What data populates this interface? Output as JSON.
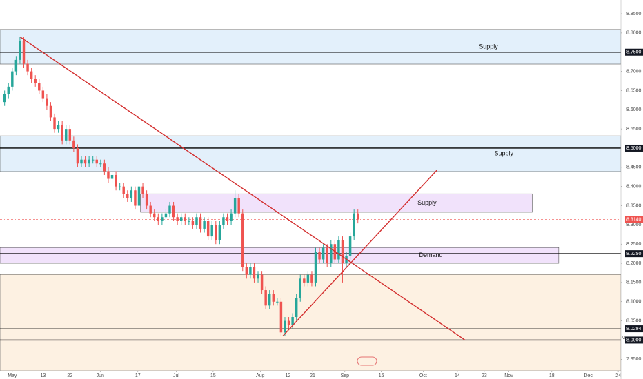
{
  "chart_data": {
    "type": "candlestick",
    "x": [
      -2,
      -1,
      0,
      1,
      2,
      3,
      4,
      5,
      6,
      7,
      8,
      9,
      10,
      11,
      12,
      13,
      14,
      15,
      16,
      17,
      18,
      19,
      20,
      21,
      22,
      23,
      24,
      25,
      26,
      27,
      28,
      29,
      30,
      31,
      32,
      33,
      34,
      35,
      36,
      37,
      38,
      39,
      40,
      41,
      42,
      43,
      44,
      45,
      46,
      47,
      48,
      49,
      50,
      51,
      52,
      53,
      54,
      55,
      56,
      57,
      58,
      59,
      60,
      61,
      62,
      63,
      64,
      65,
      66,
      67,
      68,
      69,
      70,
      71,
      72,
      73,
      74,
      75,
      76,
      77,
      78,
      79,
      80,
      81,
      82,
      83,
      84,
      85,
      86,
      87,
      88,
      89,
      90
    ],
    "open": [
      8.62,
      8.64,
      8.66,
      8.7,
      8.73,
      8.78,
      8.72,
      8.7,
      8.68,
      8.67,
      8.65,
      8.63,
      8.61,
      8.58,
      8.55,
      8.56,
      8.52,
      8.55,
      8.52,
      8.5,
      8.46,
      8.47,
      8.46,
      8.47,
      8.47,
      8.46,
      8.46,
      8.44,
      8.42,
      8.43,
      8.4,
      8.4,
      8.38,
      8.37,
      8.39,
      8.35,
      8.4,
      8.38,
      8.35,
      8.33,
      8.32,
      8.31,
      8.32,
      8.33,
      8.35,
      8.32,
      8.31,
      8.32,
      8.31,
      8.31,
      8.3,
      8.32,
      8.29,
      8.31,
      8.27,
      8.3,
      8.26,
      8.3,
      8.32,
      8.31,
      8.33,
      8.37,
      8.33,
      8.19,
      8.17,
      8.19,
      8.16,
      8.17,
      8.13,
      8.09,
      8.12,
      8.1,
      8.1,
      8.02,
      8.05,
      8.04,
      8.06,
      8.11,
      8.16,
      8.15,
      8.17,
      8.15,
      8.23,
      8.21,
      8.24,
      8.2,
      8.25,
      8.21,
      8.26,
      8.2,
      8.22,
      8.27,
      8.33
    ],
    "high": [
      8.65,
      8.67,
      8.71,
      8.74,
      8.79,
      8.79,
      8.73,
      8.71,
      8.69,
      8.68,
      8.66,
      8.64,
      8.62,
      8.59,
      8.57,
      8.57,
      8.56,
      8.56,
      8.53,
      8.51,
      8.48,
      8.48,
      8.48,
      8.48,
      8.48,
      8.47,
      8.47,
      8.45,
      8.44,
      8.44,
      8.41,
      8.41,
      8.39,
      8.4,
      8.4,
      8.41,
      8.41,
      8.39,
      8.36,
      8.34,
      8.33,
      8.33,
      8.34,
      8.36,
      8.36,
      8.33,
      8.33,
      8.33,
      8.32,
      8.32,
      8.33,
      8.33,
      8.32,
      8.32,
      8.31,
      8.31,
      8.31,
      8.33,
      8.33,
      8.34,
      8.39,
      8.38,
      8.34,
      8.2,
      8.2,
      8.2,
      8.18,
      8.18,
      8.14,
      8.13,
      8.13,
      8.11,
      8.11,
      8.06,
      8.06,
      8.07,
      8.12,
      8.17,
      8.17,
      8.18,
      8.18,
      8.24,
      8.24,
      8.25,
      8.25,
      8.26,
      8.26,
      8.27,
      8.27,
      8.23,
      8.28,
      8.34,
      8.34
    ],
    "low": [
      8.61,
      8.63,
      8.65,
      8.69,
      8.72,
      8.71,
      8.69,
      8.67,
      8.66,
      8.64,
      8.62,
      8.6,
      8.57,
      8.54,
      8.54,
      8.51,
      8.51,
      8.51,
      8.49,
      8.45,
      8.45,
      8.45,
      8.45,
      8.46,
      8.45,
      8.45,
      8.43,
      8.41,
      8.41,
      8.39,
      8.39,
      8.37,
      8.36,
      8.36,
      8.34,
      8.34,
      8.37,
      8.34,
      8.32,
      8.31,
      8.3,
      8.3,
      8.31,
      8.32,
      8.31,
      8.3,
      8.3,
      8.3,
      8.3,
      8.29,
      8.29,
      8.28,
      8.28,
      8.26,
      8.26,
      8.25,
      8.25,
      8.29,
      8.3,
      8.3,
      8.32,
      8.32,
      8.18,
      8.16,
      8.16,
      8.15,
      8.15,
      8.12,
      8.08,
      8.08,
      8.09,
      8.09,
      8.01,
      8.01,
      8.03,
      8.03,
      8.05,
      8.1,
      8.14,
      8.14,
      8.14,
      8.14,
      8.2,
      8.2,
      8.19,
      8.19,
      8.2,
      8.2,
      8.15,
      8.19,
      8.21,
      8.26,
      8.304
    ],
    "close": [
      8.64,
      8.66,
      8.7,
      8.73,
      8.78,
      8.72,
      8.7,
      8.68,
      8.67,
      8.65,
      8.63,
      8.61,
      8.58,
      8.55,
      8.56,
      8.52,
      8.55,
      8.52,
      8.5,
      8.46,
      8.47,
      8.46,
      8.47,
      8.47,
      8.46,
      8.46,
      8.44,
      8.42,
      8.43,
      8.4,
      8.4,
      8.38,
      8.37,
      8.39,
      8.35,
      8.4,
      8.38,
      8.35,
      8.33,
      8.32,
      8.31,
      8.32,
      8.33,
      8.35,
      8.32,
      8.31,
      8.32,
      8.31,
      8.31,
      8.3,
      8.32,
      8.29,
      8.31,
      8.27,
      8.3,
      8.26,
      8.3,
      8.32,
      8.31,
      8.33,
      8.37,
      8.33,
      8.19,
      8.17,
      8.19,
      8.16,
      8.17,
      8.13,
      8.09,
      8.12,
      8.1,
      8.1,
      8.02,
      8.05,
      8.04,
      8.06,
      8.11,
      8.16,
      8.15,
      8.17,
      8.15,
      8.23,
      8.21,
      8.24,
      8.2,
      8.25,
      8.21,
      8.26,
      8.2,
      8.22,
      8.27,
      8.33,
      8.314
    ],
    "up_color": "#26a69a",
    "down_color": "#ef5350",
    "xlim": [
      -3.2,
      158.5
    ],
    "xticks": [
      {
        "value": 0,
        "label": "May"
      },
      {
        "value": 8,
        "label": "13"
      },
      {
        "value": 15,
        "label": "22"
      },
      {
        "value": 22.9,
        "label": "Jun"
      },
      {
        "value": 32.7,
        "label": "17"
      },
      {
        "value": 42.7,
        "label": "Jul"
      },
      {
        "value": 52.3,
        "label": "15"
      },
      {
        "value": 64.6,
        "label": "Aug"
      },
      {
        "value": 71.8,
        "label": "12"
      },
      {
        "value": 78.2,
        "label": "21"
      },
      {
        "value": 86.6,
        "label": "Sep"
      },
      {
        "value": 96.1,
        "label": "16"
      },
      {
        "value": 107,
        "label": "Oct"
      },
      {
        "value": 115.9,
        "label": "14"
      },
      {
        "value": 122.9,
        "label": "23"
      },
      {
        "value": 129.3,
        "label": "Nov"
      },
      {
        "value": 140.5,
        "label": "18"
      },
      {
        "value": 150,
        "label": "Dec"
      },
      {
        "value": 157.8,
        "label": "24"
      }
    ],
    "ylim": [
      7.92,
      8.886
    ],
    "yticks": [
      {
        "value": 7.95,
        "label": "7.9500"
      },
      {
        "value": 8.05,
        "label": "8.0500"
      },
      {
        "value": 8.1,
        "label": "8.1000"
      },
      {
        "value": 8.15,
        "label": "8.1500"
      },
      {
        "value": 8.2,
        "label": "8.2000"
      },
      {
        "value": 8.25,
        "label": "8.2500"
      },
      {
        "value": 8.3,
        "label": "8.3000"
      },
      {
        "value": 8.35,
        "label": "8.3500"
      },
      {
        "value": 8.4,
        "label": "8.4000"
      },
      {
        "value": 8.45,
        "label": "8.4500"
      },
      {
        "value": 8.55,
        "label": "8.5500"
      },
      {
        "value": 8.6,
        "label": "8.6000"
      },
      {
        "value": 8.65,
        "label": "8.6500"
      },
      {
        "value": 8.7,
        "label": "8.7000"
      },
      {
        "value": 8.8,
        "label": "8.8000"
      },
      {
        "value": 8.85,
        "label": "8.8500"
      }
    ],
    "zones": [
      {
        "low": 8.719,
        "high": 8.809,
        "x": [
          -3.2,
          158.5
        ],
        "color": "#e3f0fb",
        "label": "Supply",
        "label_x": 124
      },
      {
        "low": 8.439,
        "high": 8.532,
        "x": [
          -3.2,
          158.5
        ],
        "color": "#e3f0fb",
        "label": "Supply",
        "label_x": 128
      },
      {
        "low": 8.333,
        "high": 8.381,
        "x": [
          33.4,
          135.4
        ],
        "color": "#f1e2fb",
        "label": "Supply",
        "label_x": 108
      },
      {
        "low": 8.2,
        "high": 8.241,
        "x": [
          -3.2,
          142.3
        ],
        "color": "#f1e2fb",
        "label": "Demand",
        "label_x": 109
      },
      {
        "low": 7.92,
        "high": 8.171,
        "x": [
          -3.2,
          158.5
        ],
        "color": "#fdf1e2"
      }
    ],
    "hlines": [
      {
        "value": 8.75,
        "label": "8.7500"
      },
      {
        "value": 8.5,
        "label": "8.5000"
      },
      {
        "value": 8.225,
        "label": "8.2250"
      },
      {
        "value": 8.0294,
        "label": "8.0294"
      },
      {
        "value": 8.0,
        "label": "8.0000"
      }
    ],
    "last_price": {
      "value": 8.314,
      "label": "8.3140",
      "color": "#ef5350"
    },
    "axis_marker": "M",
    "trendlines": [
      {
        "x": [
          2,
          117.9
        ],
        "y": [
          8.79,
          8.0
        ],
        "color": "#d32f2f"
      },
      {
        "x": [
          70.5,
          110.7
        ],
        "y": [
          8.011,
          8.444
        ],
        "color": "#d32f2f"
      }
    ]
  }
}
